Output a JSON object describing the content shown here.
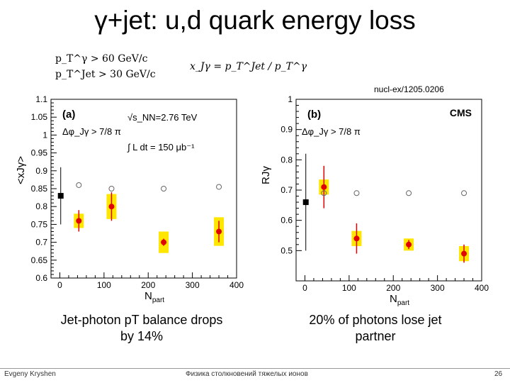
{
  "slide": {
    "title": "γ+jet: u,d quark energy loss",
    "cut_pt_photon": "p_T^γ > 60 GeV/c",
    "cut_pt_jet": "p_T^Jet > 30 GeV/c",
    "x_definition": "x_Jγ = p_T^Jet / p_T^γ",
    "reference": "nucl-ex/1205.0206",
    "caption_a": "Jet-photon pT balance drops by 14%",
    "caption_b": "20% of photons lose jet partner",
    "footer_author": "Evgeny Kryshen",
    "footer_course": "Физика столкновений тяжелых ионов",
    "footer_page": "26"
  },
  "chart_data": [
    {
      "type": "scatter",
      "panel_label": "(a)",
      "xlabel": "N_part",
      "ylabel": "<x_Jγ>",
      "xlim": [
        -20,
        400
      ],
      "ylim": [
        0.6,
        1.1
      ],
      "x_ticks": [
        0,
        100,
        200,
        300,
        400
      ],
      "y_ticks": [
        0.6,
        0.65,
        0.7,
        0.75,
        0.8,
        0.85,
        0.9,
        0.95,
        1.0,
        1.05,
        1.1
      ],
      "annotations": [
        "√s_NN=2.76 TeV",
        "∫ L dt = 150 μb⁻¹",
        "Δφ_Jγ > 7/8 π"
      ],
      "series": [
        {
          "marker": "square",
          "color": "#000000",
          "points": [
            {
              "x": 2,
              "y": 0.83,
              "err": 0.08
            }
          ]
        },
        {
          "marker": "circle",
          "color": "#e00000",
          "box_color": "#ffe600",
          "points": [
            {
              "x": 43,
              "y": 0.76,
              "err": 0.03,
              "sys": 0.02
            },
            {
              "x": 117,
              "y": 0.8,
              "err": 0.04,
              "sys": 0.035
            },
            {
              "x": 235,
              "y": 0.7,
              "err": 0.01,
              "sys": 0.03
            },
            {
              "x": 360,
              "y": 0.73,
              "err": 0.03,
              "sys": 0.04
            }
          ]
        },
        {
          "marker": "open-circle",
          "color": "#666666",
          "points": [
            {
              "x": 43,
              "y": 0.86
            },
            {
              "x": 117,
              "y": 0.85
            },
            {
              "x": 235,
              "y": 0.85
            },
            {
              "x": 360,
              "y": 0.855
            }
          ]
        }
      ]
    },
    {
      "type": "scatter",
      "panel_label": "(b)",
      "experiment_label": "CMS",
      "xlabel": "N_part",
      "ylabel": "R_Jγ",
      "xlim": [
        -20,
        400
      ],
      "ylim": [
        0.4,
        1.0
      ],
      "x_ticks": [
        0,
        100,
        200,
        300,
        400
      ],
      "y_ticks": [
        0.5,
        0.6,
        0.7,
        0.8,
        0.9,
        1.0
      ],
      "annotations": [
        "Δφ_Jγ > 7/8 π"
      ],
      "series": [
        {
          "marker": "square",
          "color": "#000000",
          "points": [
            {
              "x": 2,
              "y": 0.66,
              "err": 0.16
            }
          ]
        },
        {
          "marker": "circle",
          "color": "#e00000",
          "box_color": "#ffe600",
          "points": [
            {
              "x": 43,
              "y": 0.71,
              "err": 0.07,
              "sys": 0.025
            },
            {
              "x": 117,
              "y": 0.54,
              "err": 0.05,
              "sys": 0.025
            },
            {
              "x": 235,
              "y": 0.52,
              "err": 0.015,
              "sys": 0.02
            },
            {
              "x": 360,
              "y": 0.49,
              "err": 0.03,
              "sys": 0.025
            }
          ]
        },
        {
          "marker": "open-circle",
          "color": "#666666",
          "points": [
            {
              "x": 43,
              "y": 0.69
            },
            {
              "x": 117,
              "y": 0.69
            },
            {
              "x": 235,
              "y": 0.69
            },
            {
              "x": 360,
              "y": 0.69
            }
          ]
        }
      ]
    }
  ]
}
